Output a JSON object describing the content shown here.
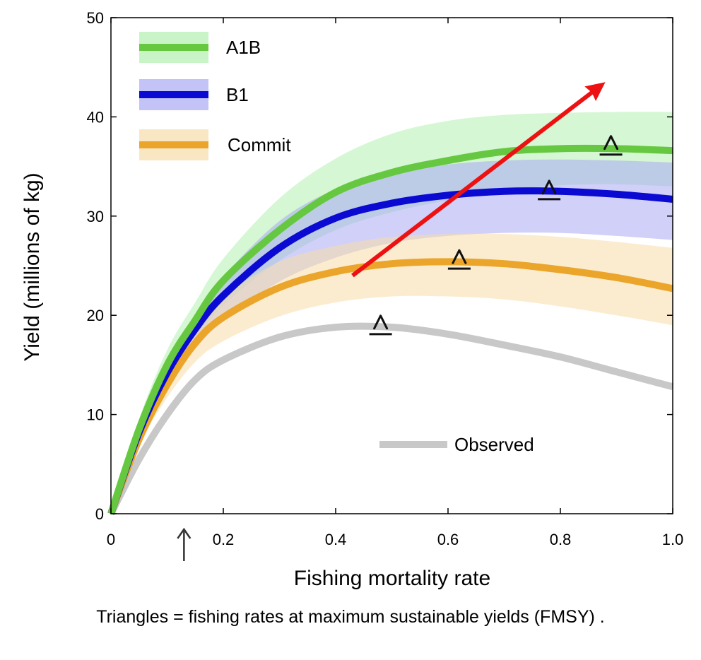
{
  "caption": "Triangles = fishing rates at maximum sustainable yields (FMSY) .",
  "chart_data": {
    "type": "line",
    "title": "",
    "xlabel": "Fishing mortality rate",
    "ylabel": "Yield (millions of kg)",
    "xlim": [
      0,
      1.0
    ],
    "ylim": [
      0,
      50
    ],
    "xticks": [
      0,
      0.2,
      0.4,
      0.6,
      0.8,
      1.0
    ],
    "xtick_labels": [
      "0",
      "0.2",
      "0.4",
      "0.6",
      "0.8",
      "1.0"
    ],
    "yticks": [
      0,
      10,
      20,
      30,
      40,
      50
    ],
    "ytick_labels": [
      "0",
      "10",
      "20",
      "30",
      "40",
      "50"
    ],
    "grid": false,
    "legend_position": "top-left",
    "x": [
      0,
      0.05,
      0.1,
      0.15,
      0.2,
      0.3,
      0.4,
      0.5,
      0.6,
      0.7,
      0.8,
      0.9,
      1.0
    ],
    "series": [
      {
        "name": "A1B",
        "color": "#66c840",
        "band_color": "#b2f0b0",
        "values": [
          0,
          8.5,
          15,
          19.5,
          23.5,
          28.6,
          32.4,
          34.4,
          35.6,
          36.5,
          36.8,
          36.8,
          36.6
        ],
        "band_lower": [
          0,
          7.5,
          13.5,
          17.5,
          21,
          25.5,
          28.6,
          30.4,
          31.6,
          32.6,
          33.1,
          33.2,
          33
        ],
        "band_upper": [
          0,
          9.5,
          16.5,
          21.3,
          25.7,
          31.8,
          35.8,
          38.3,
          39.6,
          40.2,
          40.4,
          40.5,
          40.5
        ],
        "fmsy": {
          "x": 0.89,
          "y": 37.2
        }
      },
      {
        "name": "B1",
        "color": "#0a0ad2",
        "band_color": "#aaaaf4",
        "values": [
          0,
          8.2,
          14.2,
          18.6,
          22,
          26.8,
          29.8,
          31.3,
          32.1,
          32.5,
          32.5,
          32.2,
          31.7
        ],
        "band_lower": [
          0,
          7.4,
          12.8,
          16.6,
          19.4,
          23.4,
          25.8,
          27.3,
          28,
          28.3,
          28.3,
          28,
          27.6
        ],
        "band_upper": [
          0,
          9,
          15.4,
          20.1,
          23.9,
          29.5,
          32.7,
          34.3,
          35.2,
          35.6,
          35.7,
          35.6,
          35.4
        ],
        "fmsy": {
          "x": 0.78,
          "y": 32.7
        }
      },
      {
        "name": "Commit",
        "color": "#eaa52a",
        "band_color": "#f7ddaa",
        "values": [
          0,
          7.5,
          13,
          17.2,
          19.8,
          22.8,
          24.4,
          25.2,
          25.4,
          25.2,
          24.6,
          23.8,
          22.7
        ],
        "band_lower": [
          0,
          6.9,
          11.7,
          15.3,
          17.4,
          19.9,
          21.3,
          21.9,
          21.9,
          21.6,
          20.9,
          20,
          19
        ],
        "band_upper": [
          0,
          8.1,
          14.2,
          18.9,
          21.9,
          25.4,
          27,
          27.9,
          28.2,
          28.2,
          27.9,
          27.4,
          26.8
        ],
        "fmsy": {
          "x": 0.62,
          "y": 25.7
        }
      },
      {
        "name": "Observed",
        "color": "#c8c8c8",
        "values": [
          0,
          5.5,
          10,
          13.5,
          15.5,
          17.8,
          18.8,
          18.8,
          18.1,
          17,
          15.8,
          14.3,
          12.8
        ],
        "fmsy": {
          "x": 0.48,
          "y": 19.1
        }
      }
    ],
    "annotations": [
      {
        "type": "arrow",
        "color": "#ee1111",
        "from": {
          "x": 0.43,
          "y": 24
        },
        "to": {
          "x": 0.88,
          "y": 43.5
        }
      },
      {
        "type": "arrow",
        "color": "#333333",
        "at_x": 0.13,
        "position": "below x-axis"
      }
    ]
  }
}
